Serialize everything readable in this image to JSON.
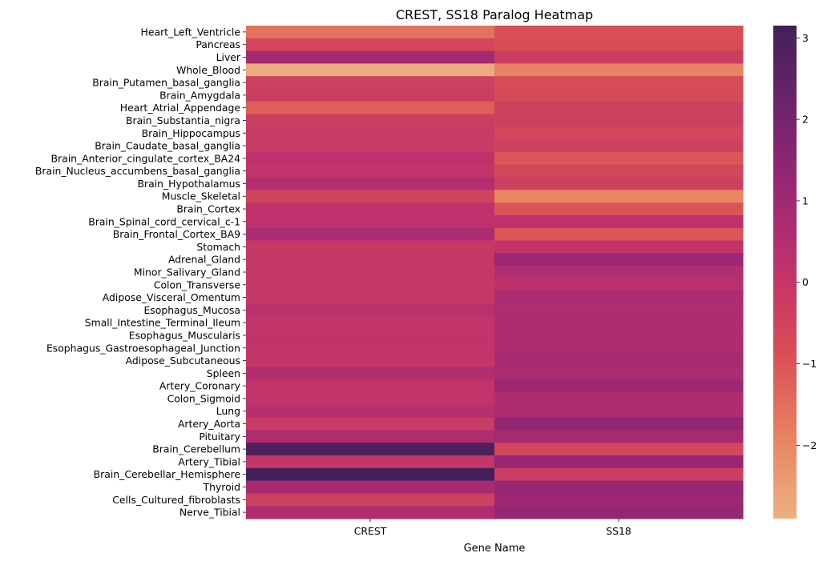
{
  "chart_data": {
    "type": "heatmap",
    "title": "CREST, SS18 Paralog Heatmap",
    "xlabel": "Gene Name",
    "ylabel": "",
    "columns": [
      "CREST",
      "SS18"
    ],
    "rows": [
      "Heart_Left_Ventricle",
      "Pancreas",
      "Liver",
      "Whole_Blood",
      "Brain_Putamen_basal_ganglia",
      "Brain_Amygdala",
      "Heart_Atrial_Appendage",
      "Brain_Substantia_nigra",
      "Brain_Hippocampus",
      "Brain_Caudate_basal_ganglia",
      "Brain_Anterior_cingulate_cortex_BA24",
      "Brain_Nucleus_accumbens_basal_ganglia",
      "Brain_Hypothalamus",
      "Muscle_Skeletal",
      "Brain_Cortex",
      "Brain_Spinal_cord_cervical_c-1",
      "Brain_Frontal_Cortex_BA9",
      "Stomach",
      "Adrenal_Gland",
      "Minor_Salivary_Gland",
      "Colon_Transverse",
      "Adipose_Visceral_Omentum",
      "Esophagus_Mucosa",
      "Small_Intestine_Terminal_Ileum",
      "Esophagus_Muscularis",
      "Esophagus_Gastroesophageal_Junction",
      "Adipose_Subcutaneous",
      "Spleen",
      "Artery_Coronary",
      "Colon_Sigmoid",
      "Lung",
      "Artery_Aorta",
      "Pituitary",
      "Brain_Cerebellum",
      "Artery_Tibial",
      "Brain_Cerebellar_Hemisphere",
      "Thyroid",
      "Cells_Cultured_fibroblasts",
      "Nerve_Tibial"
    ],
    "values": [
      [
        -1.6,
        -0.9
      ],
      [
        -0.6,
        -0.8
      ],
      [
        0.9,
        -0.3
      ],
      [
        -2.8,
        -1.9
      ],
      [
        -0.4,
        -0.8
      ],
      [
        -0.3,
        -0.7
      ],
      [
        -1.2,
        -0.4
      ],
      [
        -0.3,
        -0.4
      ],
      [
        -0.2,
        -0.6
      ],
      [
        -0.2,
        -0.4
      ],
      [
        0.2,
        -1.0
      ],
      [
        0.1,
        -0.6
      ],
      [
        0.5,
        -0.4
      ],
      [
        -0.5,
        -2.0
      ],
      [
        0.2,
        -1.0
      ],
      [
        0.2,
        0.2
      ],
      [
        0.7,
        -1.0
      ],
      [
        -0.1,
        0.1
      ],
      [
        -0.1,
        1.1
      ],
      [
        0.0,
        0.5
      ],
      [
        -0.1,
        0.3
      ],
      [
        -0.1,
        0.7
      ],
      [
        0.3,
        0.6
      ],
      [
        0.1,
        0.7
      ],
      [
        0.1,
        0.6
      ],
      [
        0.1,
        0.7
      ],
      [
        0.0,
        0.8
      ],
      [
        0.5,
        0.7
      ],
      [
        0.1,
        1.1
      ],
      [
        0.1,
        0.6
      ],
      [
        0.4,
        0.7
      ],
      [
        -0.2,
        1.3
      ],
      [
        0.6,
        0.9
      ],
      [
        2.9,
        -0.6
      ],
      [
        0.0,
        1.2
      ],
      [
        3.1,
        -0.3
      ],
      [
        0.8,
        1.2
      ],
      [
        -0.4,
        1.1
      ],
      [
        0.6,
        1.3
      ]
    ],
    "colorbar": {
      "vmin": -2.9,
      "vmax": 3.15,
      "ticks": [
        -2,
        -1,
        0,
        1,
        2,
        3
      ],
      "tick_labels": [
        "−2",
        "−1",
        "0",
        "1",
        "2",
        "3"
      ],
      "colors": [
        "#edb081",
        "#e88262",
        "#d84f55",
        "#c1326b",
        "#9b2774",
        "#6e246c",
        "#41205a"
      ]
    }
  }
}
